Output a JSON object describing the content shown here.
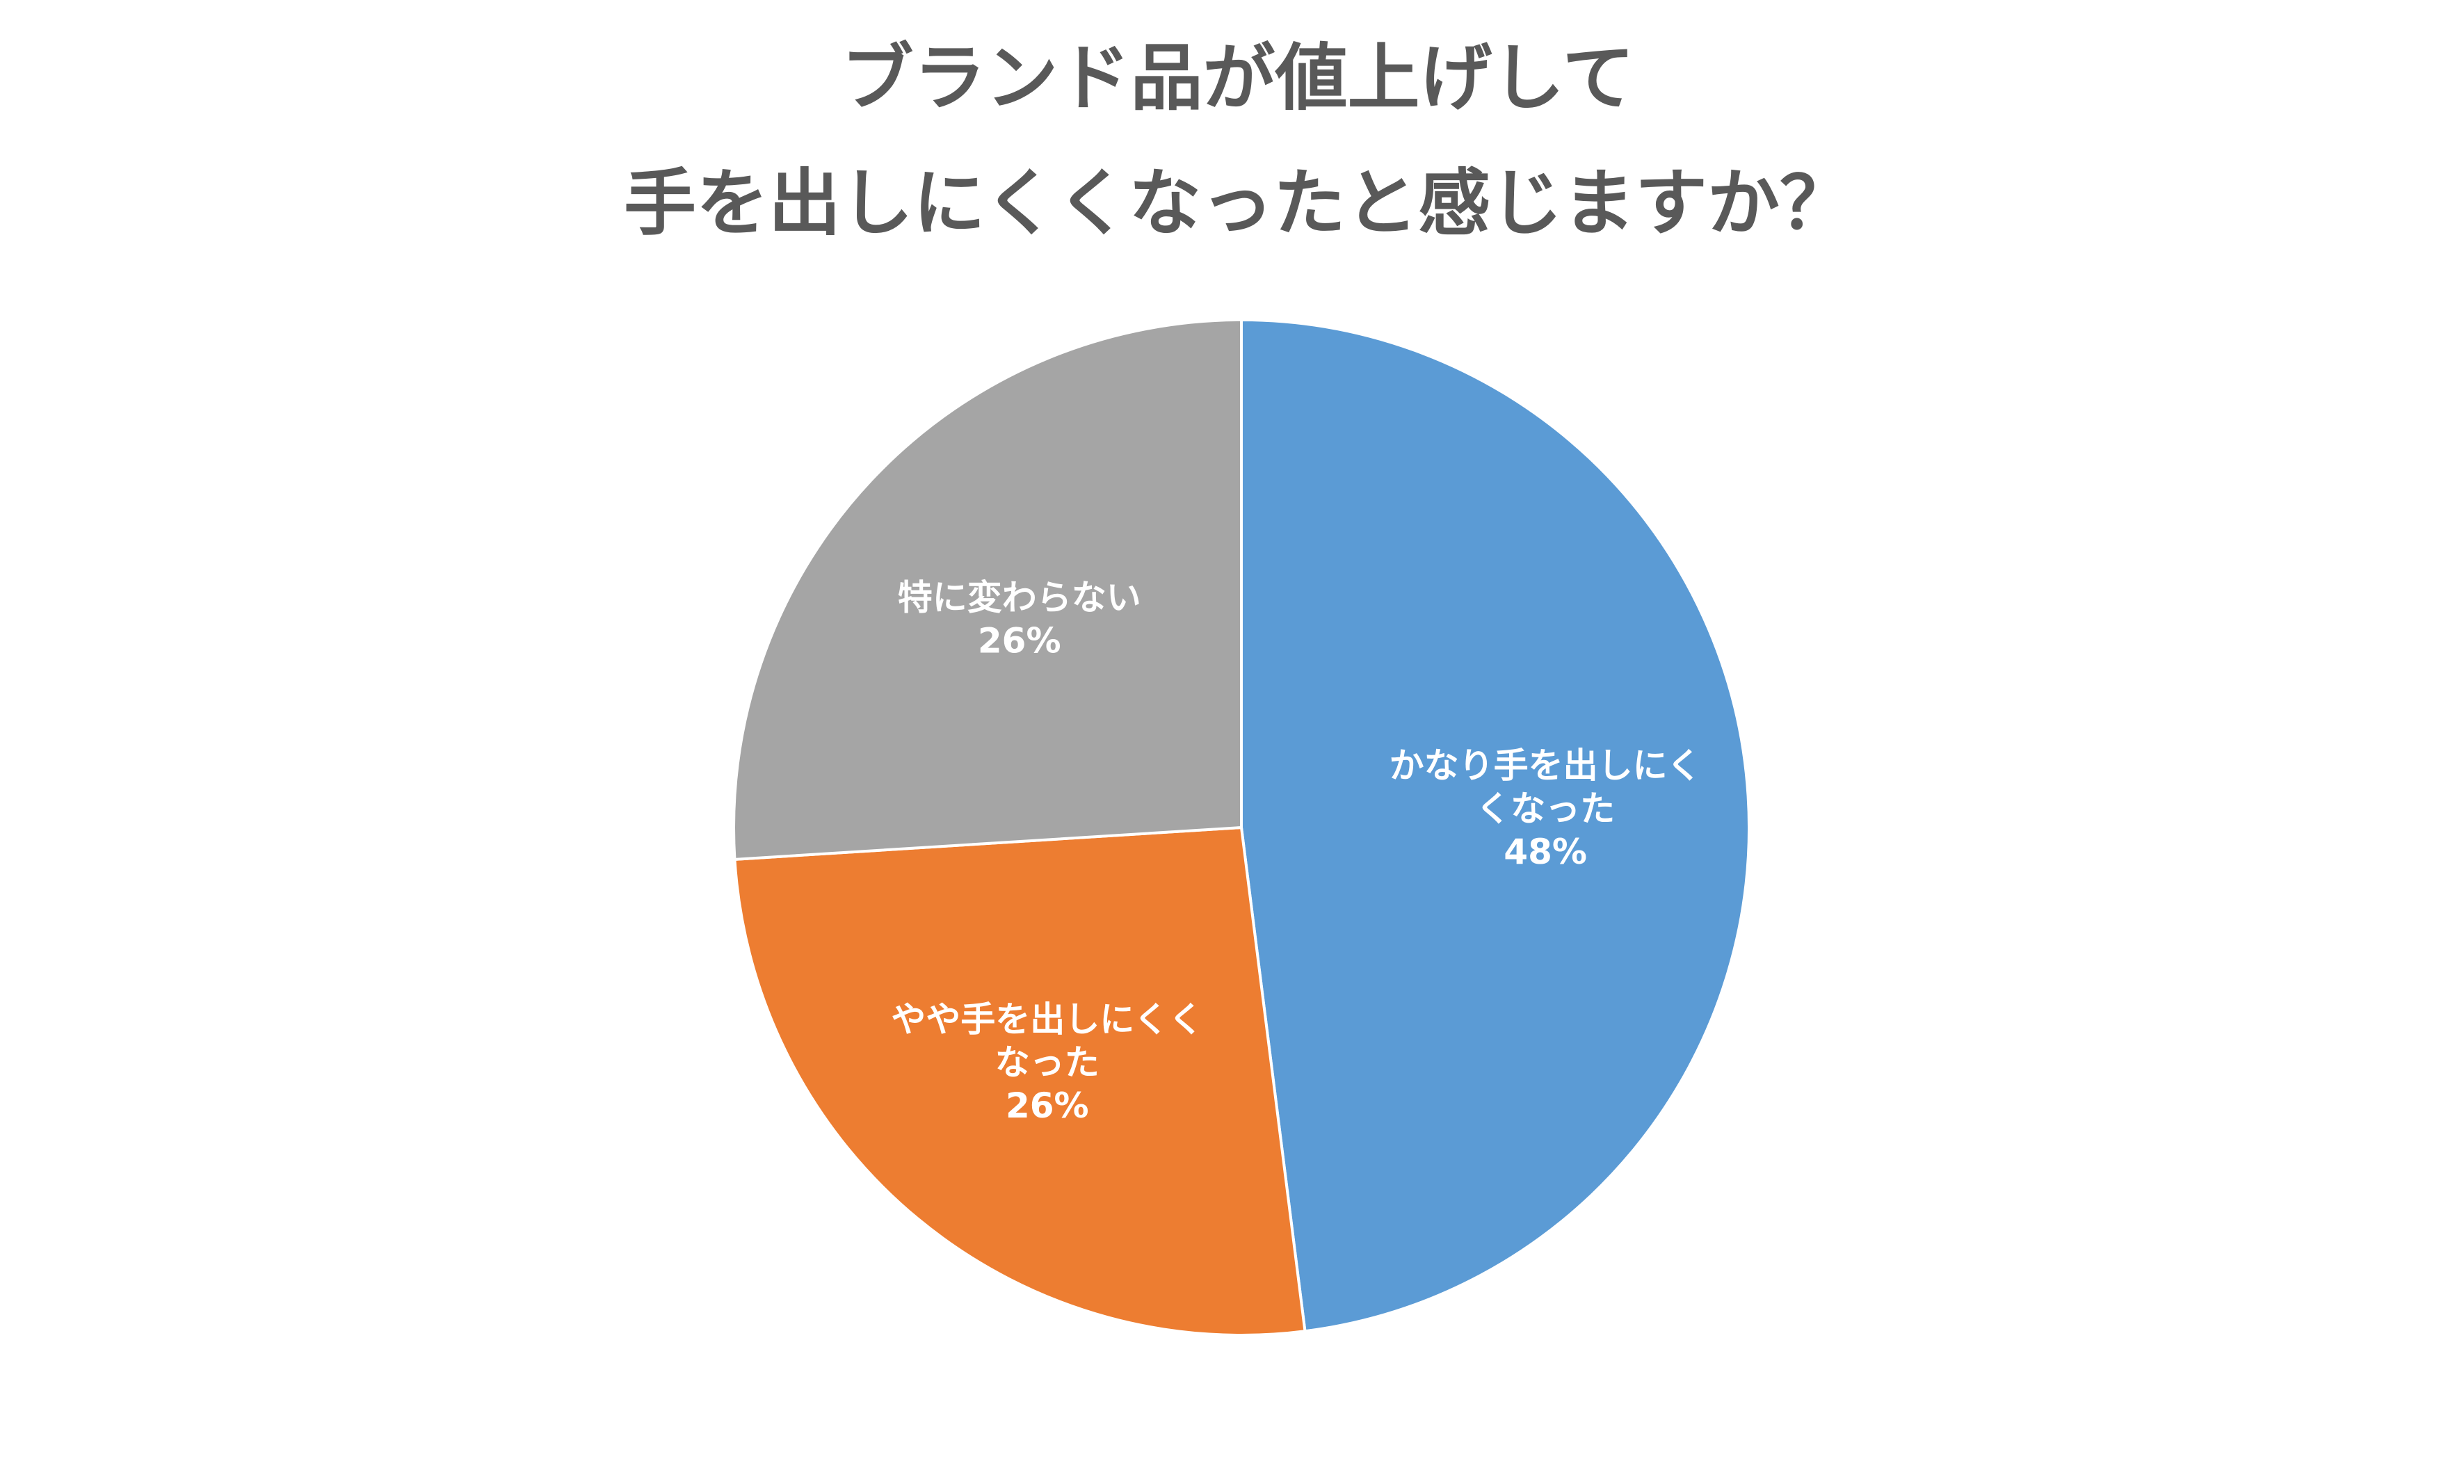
{
  "chart_data": {
    "type": "pie",
    "title_lines": [
      "ブランド品が値上げして",
      "手を出しにくくなったと感じますか？"
    ],
    "slices": [
      {
        "label_lines": [
          "かなり手を出しにく",
          "くなった"
        ],
        "value": 48,
        "value_label": "48%",
        "color": "#5B9BD5"
      },
      {
        "label_lines": [
          "やや手を出しにくく",
          "なった"
        ],
        "value": 26,
        "value_label": "26%",
        "color": "#ED7D31"
      },
      {
        "label_lines": [
          "特に変わらない"
        ],
        "value": 26,
        "value_label": "26%",
        "color": "#A5A5A5"
      }
    ],
    "start_angle": "12 o'clock",
    "direction": "clockwise",
    "slice_border_color": "#ffffff",
    "legend": "none"
  }
}
